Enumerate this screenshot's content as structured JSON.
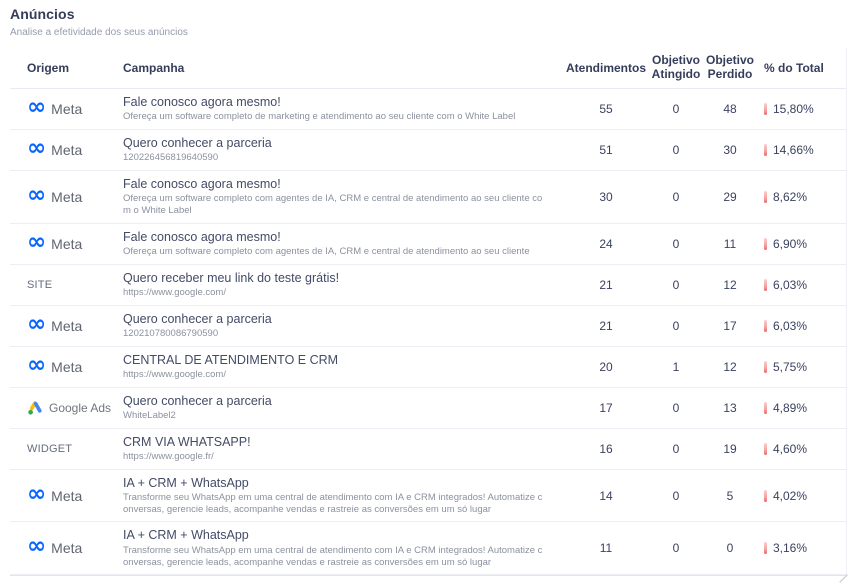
{
  "page": {
    "title": "Anúncios",
    "subtitle": "Analise a efetividade dos seus anúncios"
  },
  "icons": {
    "meta_infinity": "∞",
    "trend_down": "down-bar"
  },
  "colors": {
    "meta_blue": "#0866ff",
    "trend_down_red": "#ee6666",
    "heading_navy": "#333c58",
    "google_yellow": "#FBBC04",
    "google_blue": "#4285F4",
    "google_green": "#34A853"
  },
  "table": {
    "headers": {
      "origem": "Origem",
      "campanha": "Campanha",
      "atendimentos": "Atendimentos",
      "objetivo_atingido": "Objetivo\nAtingido",
      "objetivo_perdido": "Objetivo\nPerdido",
      "pct_total": "% do Total"
    },
    "rows": [
      {
        "source": "meta",
        "source_label": "Meta",
        "campaign": "Fale conosco agora mesmo!",
        "detail": "Ofereça um software completo de marketing e atendimento ao seu cliente com o White Label",
        "atendimentos": "55",
        "atingido": "0",
        "perdido": "48",
        "pct": "15,80%",
        "tall": false
      },
      {
        "source": "meta",
        "source_label": "Meta",
        "campaign": "Quero conhecer a parceria",
        "detail": "120226456819640590",
        "atendimentos": "51",
        "atingido": "0",
        "perdido": "30",
        "pct": "14,66%",
        "tall": false
      },
      {
        "source": "meta",
        "source_label": "Meta",
        "campaign": "Fale conosco agora mesmo!",
        "detail": "Ofereça um software completo com agentes de IA, CRM e central de atendimento ao seu cliente com o White Label",
        "atendimentos": "30",
        "atingido": "0",
        "perdido": "29",
        "pct": "8,62%",
        "tall": false
      },
      {
        "source": "meta",
        "source_label": "Meta",
        "campaign": "Fale conosco agora mesmo!",
        "detail": "Ofereça um software completo com agentes de IA, CRM e central de atendimento ao seu cliente",
        "atendimentos": "24",
        "atingido": "0",
        "perdido": "11",
        "pct": "6,90%",
        "tall": false
      },
      {
        "source": "site",
        "source_label": "SITE",
        "campaign": "Quero receber meu link do teste grátis!",
        "detail": "https://www.google.com/",
        "atendimentos": "21",
        "atingido": "0",
        "perdido": "12",
        "pct": "6,03%",
        "tall": false
      },
      {
        "source": "meta",
        "source_label": "Meta",
        "campaign": "Quero conhecer a parceria",
        "detail": "120210780086790590",
        "atendimentos": "21",
        "atingido": "0",
        "perdido": "17",
        "pct": "6,03%",
        "tall": false
      },
      {
        "source": "meta",
        "source_label": "Meta",
        "campaign": "CENTRAL DE ATENDIMENTO E CRM",
        "detail": "https://www.google.com/",
        "atendimentos": "20",
        "atingido": "1",
        "perdido": "12",
        "pct": "5,75%",
        "tall": false
      },
      {
        "source": "google_ads",
        "source_label": "Google Ads",
        "campaign": "Quero conhecer a parceria",
        "detail": "WhiteLabel2",
        "atendimentos": "17",
        "atingido": "0",
        "perdido": "13",
        "pct": "4,89%",
        "tall": false
      },
      {
        "source": "widget",
        "source_label": "WIDGET",
        "campaign": "CRM VIA WHATSAPP!",
        "detail": "https://www.google.fr/",
        "atendimentos": "16",
        "atingido": "0",
        "perdido": "19",
        "pct": "4,60%",
        "tall": false
      },
      {
        "source": "meta",
        "source_label": "Meta",
        "campaign": "IA + CRM + WhatsApp",
        "detail": "Transforme seu WhatsApp em uma central de atendimento com IA e CRM integrados! Automatize conversas, gerencie leads, acompanhe vendas e rastreie as conversões em um só lugar",
        "atendimentos": "14",
        "atingido": "0",
        "perdido": "5",
        "pct": "4,02%",
        "tall": true
      },
      {
        "source": "meta",
        "source_label": "Meta",
        "campaign": "IA + CRM + WhatsApp",
        "detail": "Transforme seu WhatsApp em uma central de atendimento com IA e CRM integrados! Automatize conversas, gerencie leads, acompanhe vendas e rastreie as conversões em um só lugar",
        "atendimentos": "11",
        "atingido": "0",
        "perdido": "0",
        "pct": "3,16%",
        "tall": true
      }
    ]
  }
}
